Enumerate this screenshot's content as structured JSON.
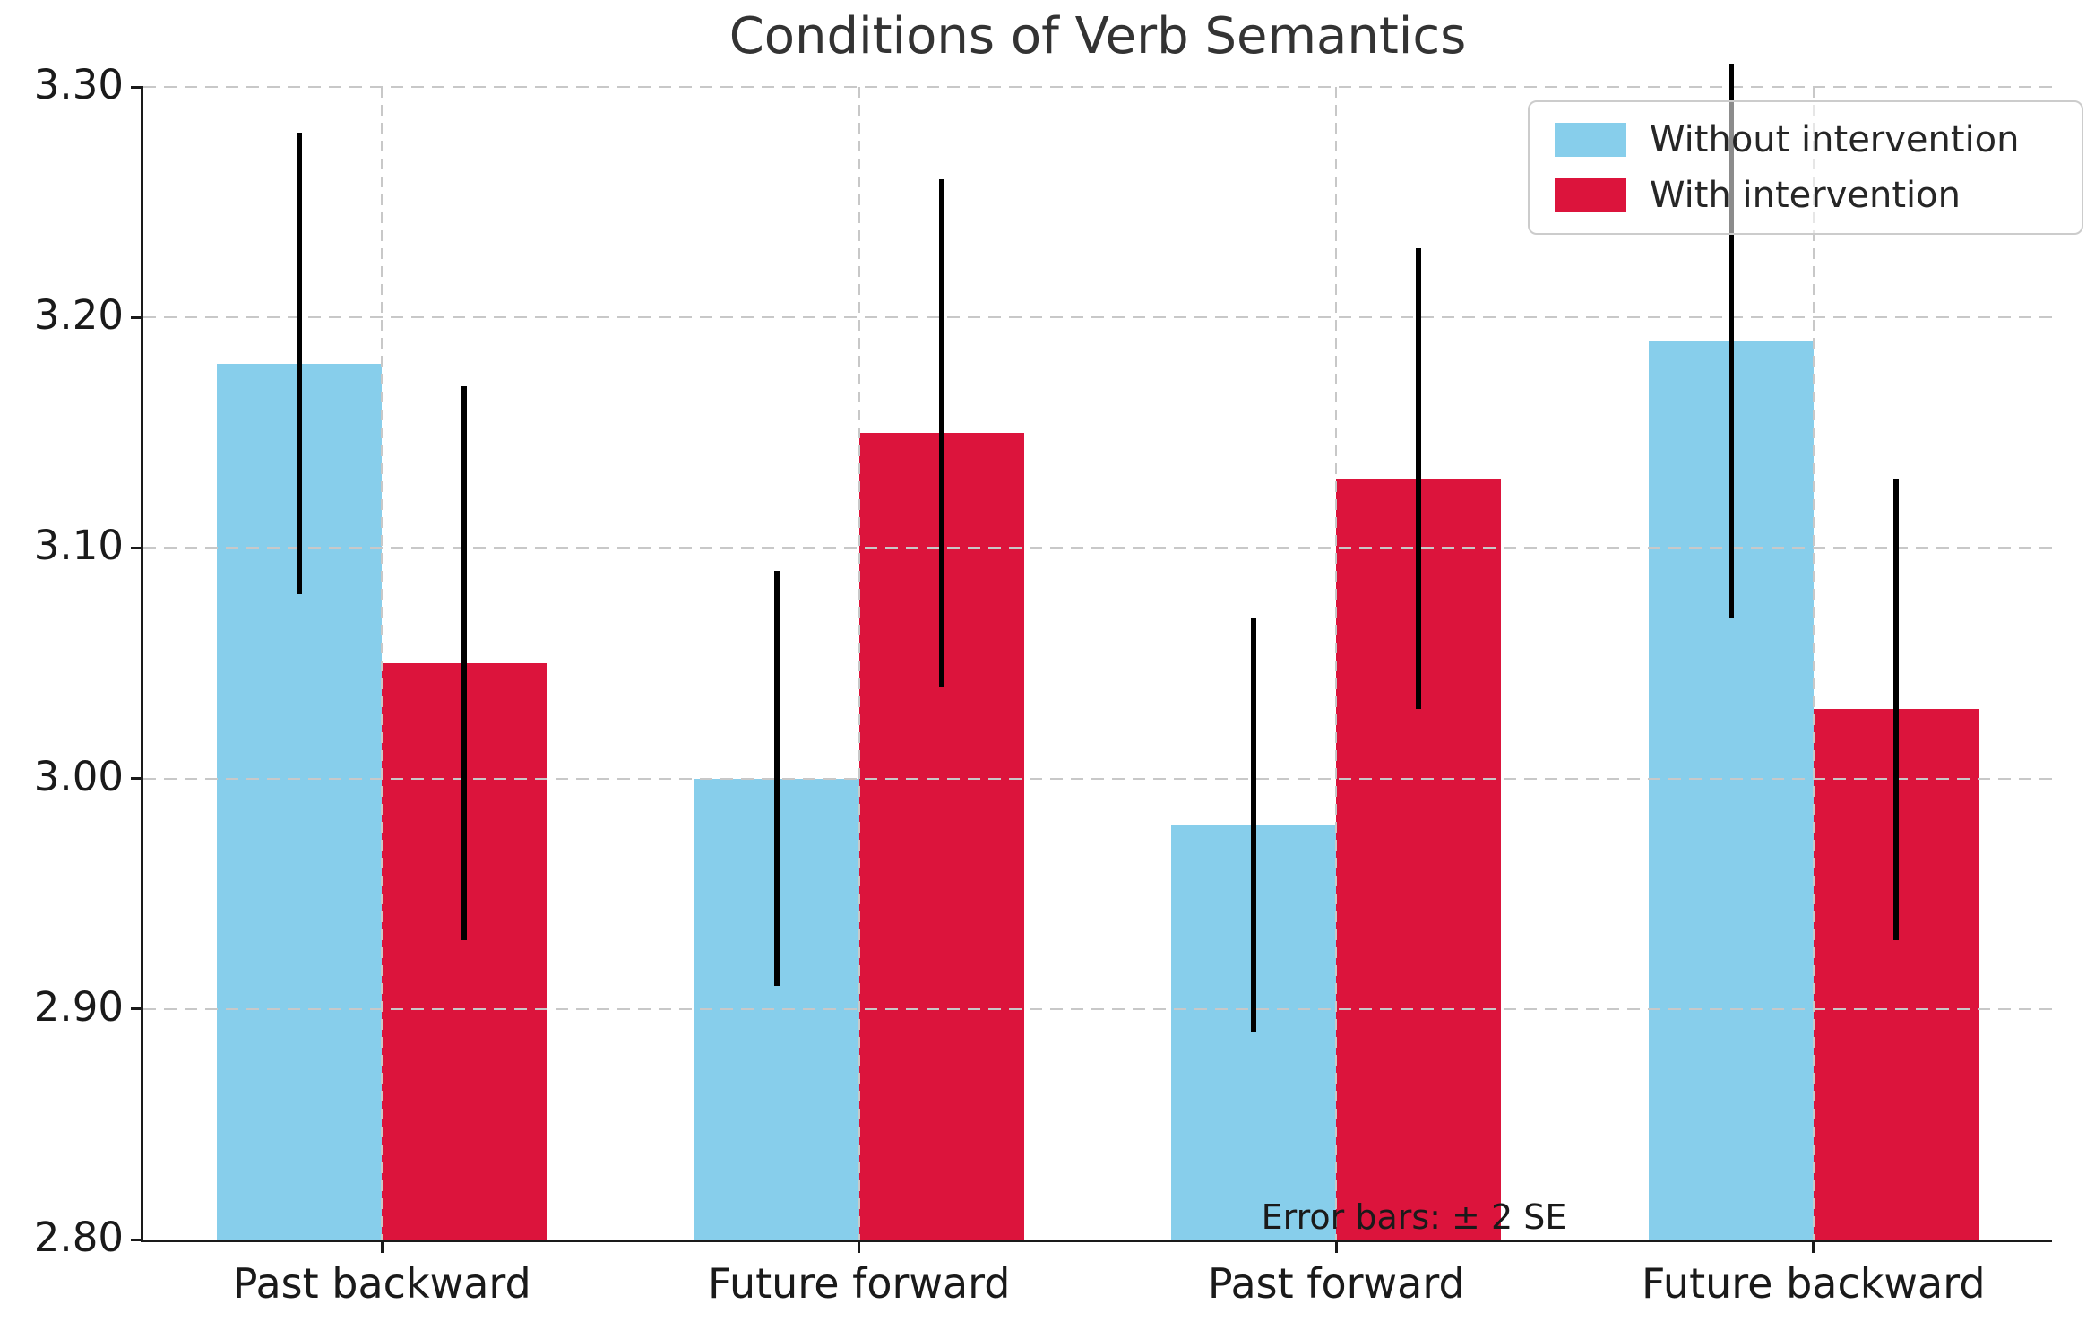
{
  "chart_data": {
    "type": "bar",
    "title": "Conditions of Verb Semantics",
    "categories": [
      "Past backward",
      "Future forward",
      "Past forward",
      "Future backward"
    ],
    "series": [
      {
        "name": "Without intervention",
        "color": "#87CEEB",
        "values": [
          3.18,
          3.0,
          2.98,
          3.19
        ],
        "error_low": [
          3.08,
          2.91,
          2.89,
          3.07
        ],
        "error_high": [
          3.28,
          3.09,
          3.07,
          3.31
        ]
      },
      {
        "name": "With intervention",
        "color": "#DC143C",
        "values": [
          3.05,
          3.15,
          3.13,
          3.03
        ],
        "error_low": [
          2.93,
          3.04,
          3.03,
          2.93
        ],
        "error_high": [
          3.17,
          3.26,
          3.23,
          3.13
        ]
      }
    ],
    "ylim": [
      2.8,
      3.3
    ],
    "yticks": [
      "2.80",
      "2.90",
      "3.00",
      "3.10",
      "3.20",
      "3.30"
    ],
    "annotation": "Error bars: ± 2 SE",
    "error_bar_color": "#000000",
    "grid": "dashed, both axes, drawn above bars",
    "legend_position": "upper right"
  }
}
